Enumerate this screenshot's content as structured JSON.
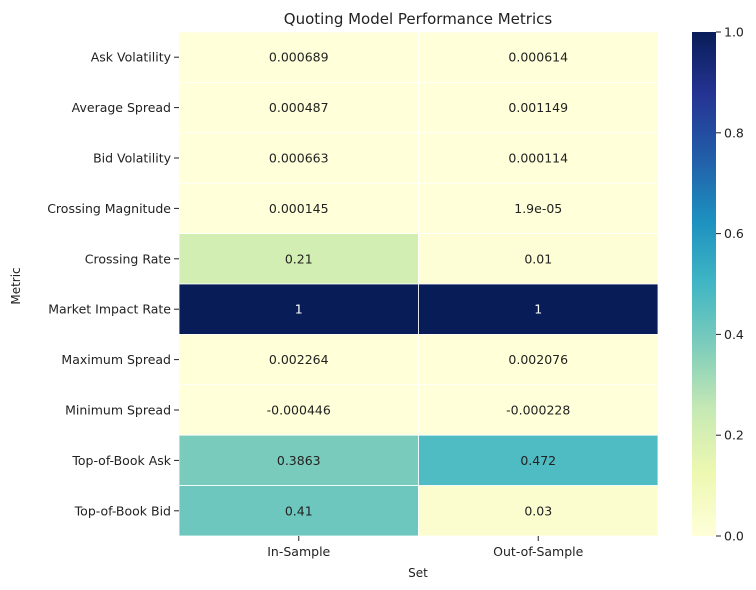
{
  "chart_data": {
    "type": "heatmap",
    "title": "Quoting Model Performance Metrics",
    "xlabel": "Set",
    "ylabel": "Metric",
    "columns": [
      "In-Sample",
      "Out-of-Sample"
    ],
    "rows": [
      "Ask Volatility",
      "Average Spread",
      "Bid Volatility",
      "Crossing Magnitude",
      "Crossing Rate",
      "Market Impact Rate",
      "Maximum Spread",
      "Minimum Spread",
      "Top-of-Book Ask",
      "Top-of-Book Bid"
    ],
    "values": [
      [
        0.000689,
        0.000614
      ],
      [
        0.000487,
        0.001149
      ],
      [
        0.000663,
        0.000114
      ],
      [
        0.000145,
        1.9e-05
      ],
      [
        0.21,
        0.01
      ],
      [
        1,
        1
      ],
      [
        0.002264,
        0.002076
      ],
      [
        -0.000446,
        -0.000228
      ],
      [
        0.3863,
        0.472
      ],
      [
        0.41,
        0.03
      ]
    ],
    "labels": [
      [
        "0.000689",
        "0.000614"
      ],
      [
        "0.000487",
        "0.001149"
      ],
      [
        "0.000663",
        "0.000114"
      ],
      [
        "0.000145",
        "1.9e-05"
      ],
      [
        "0.21",
        "0.01"
      ],
      [
        "1",
        "1"
      ],
      [
        "0.002264",
        "0.002076"
      ],
      [
        "-0.000446",
        "-0.000228"
      ],
      [
        "0.3863",
        "0.472"
      ],
      [
        "0.41",
        "0.03"
      ]
    ],
    "colorbar": {
      "range": [
        0,
        1
      ],
      "ticks": [
        "0.0",
        "0.2",
        "0.4",
        "0.6",
        "0.8",
        "1.0"
      ],
      "colormap": "YlGnBu"
    }
  }
}
